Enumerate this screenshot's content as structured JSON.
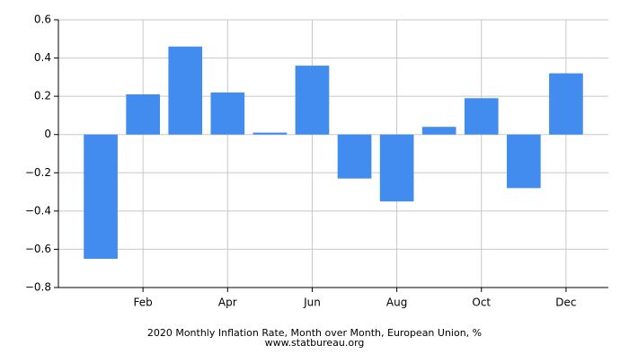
{
  "chart_data": {
    "type": "bar",
    "title": "2020 Monthly Inflation Rate, Month over Month, European Union, %",
    "subtitle": "www.statbureau.org",
    "categories": [
      null,
      "Feb",
      null,
      "Apr",
      null,
      "Jun",
      null,
      "Aug",
      null,
      "Oct",
      null,
      "Dec"
    ],
    "values": [
      -0.65,
      0.21,
      0.46,
      0.22,
      0.01,
      0.36,
      -0.23,
      -0.35,
      0.04,
      0.19,
      -0.28,
      0.32
    ],
    "color": "#428bef",
    "ylim": [
      -0.8,
      0.6
    ],
    "yticks": [
      {
        "value": -0.8,
        "label": "−0.8"
      },
      {
        "value": -0.6,
        "label": "−0.6"
      },
      {
        "value": -0.4,
        "label": "−0.4"
      },
      {
        "value": -0.2,
        "label": "−0.2"
      },
      0,
      0.2,
      0.4,
      0.6
    ],
    "grid": true
  }
}
